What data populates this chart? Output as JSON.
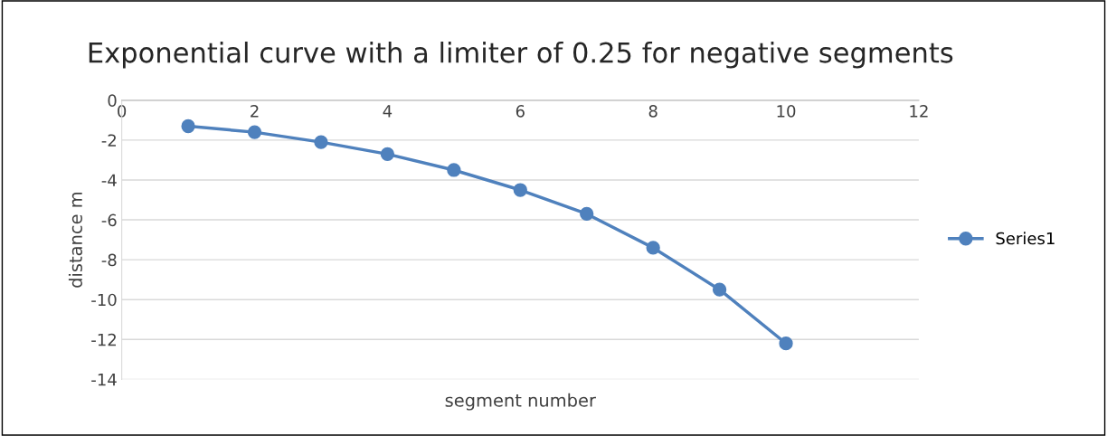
{
  "chart_data": {
    "type": "line",
    "title": "Exponential curve with a limiter of 0.25 for negative segments",
    "xlabel": "segment number",
    "ylabel": "distance m",
    "x": [
      1,
      2,
      3,
      4,
      5,
      6,
      7,
      8,
      9,
      10
    ],
    "series": [
      {
        "name": "Series1",
        "color": "#4f81bd",
        "values": [
          -1.3,
          -1.6,
          -2.1,
          -2.7,
          -3.5,
          -4.5,
          -5.7,
          -7.4,
          -9.5,
          -12.2
        ]
      }
    ],
    "xlim": [
      0,
      12
    ],
    "xticks": [
      0,
      2,
      4,
      6,
      8,
      10,
      12
    ],
    "ylim": [
      -14,
      0
    ],
    "yticks": [
      0,
      -2,
      -4,
      -6,
      -8,
      -10,
      -12,
      -14
    ],
    "grid": "y",
    "legend": "right",
    "marker": "circle",
    "line_style": "solid"
  }
}
